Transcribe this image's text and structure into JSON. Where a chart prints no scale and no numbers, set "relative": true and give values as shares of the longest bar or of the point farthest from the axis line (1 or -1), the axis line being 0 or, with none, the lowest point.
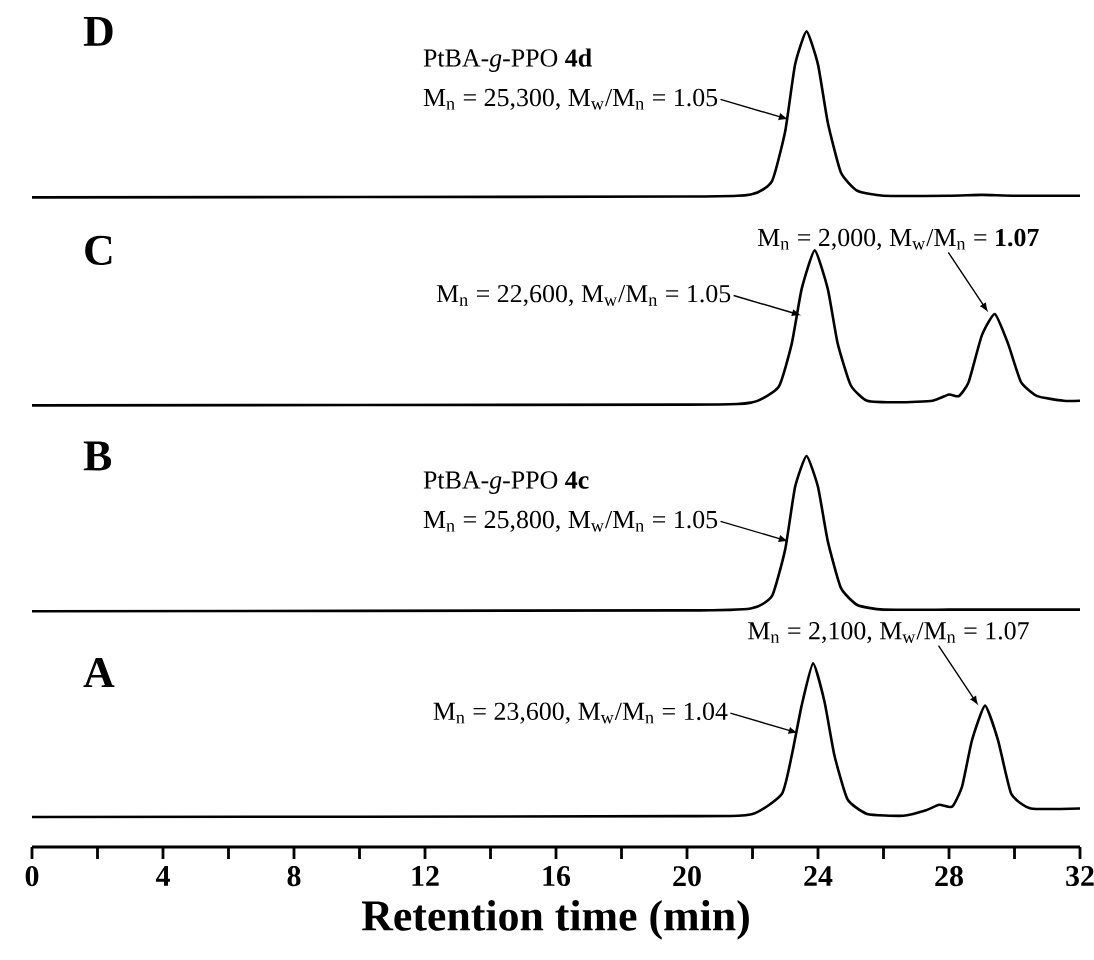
{
  "chart_data": [
    {
      "type": "line",
      "title": "D",
      "relative": true,
      "color": "#000000",
      "xlim": [
        0,
        32
      ],
      "tick_labels": false,
      "x": [
        0,
        20,
        22,
        22.6,
        23.0,
        23.3,
        23.65,
        24.0,
        24.3,
        24.7,
        25.2,
        26,
        28,
        29,
        30,
        32
      ],
      "values": [
        0,
        0.005,
        0.02,
        0.1,
        0.4,
        0.8,
        1,
        0.8,
        0.45,
        0.15,
        0.04,
        0.01,
        0.01,
        0.015,
        0.01,
        0.01
      ],
      "annotations": [
        {
          "text": "M$_{n}$ = 25,300, M$_{w}$/M$_{n}$ = 1.05",
          "x": 23.1,
          "y": 0.47
        },
        "PtBA-*g*-PPO **4d**"
      ]
    },
    {
      "type": "line",
      "title": "C",
      "relative": true,
      "color": "#000000",
      "xlim": [
        0,
        32
      ],
      "tick_labels": false,
      "x": [
        0,
        20,
        22,
        22.8,
        23.2,
        23.5,
        23.9,
        24.3,
        24.6,
        25.0,
        25.5,
        26.5,
        27.5,
        28.0,
        28.3,
        28.6,
        29.0,
        29.4,
        29.8,
        30.2,
        30.7,
        31.5,
        32
      ],
      "values": [
        0,
        0.005,
        0.02,
        0.12,
        0.4,
        0.75,
        1,
        0.75,
        0.4,
        0.13,
        0.03,
        0.02,
        0.03,
        0.07,
        0.06,
        0.15,
        0.45,
        0.59,
        0.4,
        0.15,
        0.06,
        0.03,
        0.03
      ],
      "annotations": [
        {
          "text": "M$_{n}$ = 22,600, M$_{w}$/M$_{n}$ = 1.05",
          "x": 23.5,
          "y": 0.58
        },
        {
          "text": "M$_{n}$ = 2,000, M$_{w}$/M$_{n}$ = **1.07**",
          "x": 29.2,
          "y": 0.6
        }
      ]
    },
    {
      "type": "line",
      "title": "B",
      "relative": true,
      "color": "#000000",
      "xlim": [
        0,
        32
      ],
      "tick_labels": false,
      "x": [
        0,
        20,
        22,
        22.6,
        23.0,
        23.3,
        23.65,
        24.0,
        24.3,
        24.7,
        25.2,
        26,
        28,
        29,
        30,
        32
      ],
      "values": [
        0,
        0.005,
        0.02,
        0.1,
        0.4,
        0.8,
        1,
        0.8,
        0.45,
        0.15,
        0.04,
        0.01,
        0.01,
        0.01,
        0.01,
        0.01
      ],
      "annotations": [
        {
          "text": "M$_{n}$ = 25,800, M$_{w}$/M$_{n}$ = 1.05",
          "x": 23.1,
          "y": 0.45
        },
        "PtBA-*g*-PPO **4c**"
      ]
    },
    {
      "type": "line",
      "title": "A",
      "relative": true,
      "color": "#000000",
      "xlim": [
        0,
        32
      ],
      "xlabel": "Retention time (min)",
      "xticks": [
        0,
        {
          "value": 2,
          "label": null
        },
        4,
        {
          "value": 6,
          "label": null
        },
        8,
        {
          "value": 10,
          "label": null
        },
        12,
        {
          "value": 14,
          "label": null
        },
        16,
        {
          "value": 18,
          "label": null
        },
        20,
        {
          "value": 22,
          "label": null
        },
        24,
        {
          "value": 26,
          "label": null
        },
        28,
        {
          "value": 30,
          "label": null
        },
        32
      ],
      "x": [
        0,
        20,
        22,
        22.9,
        23.2,
        23.5,
        23.85,
        24.2,
        24.5,
        24.9,
        25.5,
        26.6,
        27.3,
        27.7,
        28.1,
        28.4,
        28.7,
        29.1,
        29.5,
        29.9,
        30.5,
        32
      ],
      "values": [
        0.163,
        0.168,
        0.18,
        0.29,
        0.5,
        0.77,
        1,
        0.79,
        0.5,
        0.26,
        0.18,
        0.17,
        0.2,
        0.23,
        0.22,
        0.33,
        0.58,
        0.77,
        0.58,
        0.29,
        0.21,
        0.21
      ],
      "annotations": [
        {
          "text": "M$_{n}$ = 23,600, M$_{w}$/M$_{n}$ = 1.04",
          "x": 23.4,
          "y": 0.62
        },
        {
          "text": "M$_{n}$ = 2,100, M$_{w}$/M$_{n}$ = 1.07",
          "x": 28.9,
          "y": 0.77
        }
      ]
    }
  ]
}
